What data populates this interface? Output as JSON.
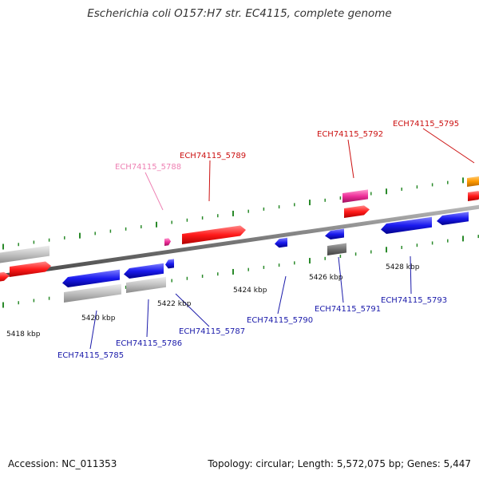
{
  "title": "Escherichia coli O157:H7 str. EC4115, complete genome",
  "footer": {
    "accession": "Accession: NC_011353",
    "summary": "Topology: circular; Length: 5,572,075 bp; Genes: 5,447"
  },
  "colors": {
    "forward_cds": "#ff1a1a",
    "reverse_cds": "#1a1aee",
    "other_gene": "#c0c0c0",
    "dark_feature": "#777777",
    "pink_feature": "#ee2f9a",
    "orange_feature": "#ff9a00",
    "pseudo_label": "#ee82b4",
    "tick_green": "#2a8a2a",
    "backbone": "#888888"
  },
  "axis_labels": [
    "5418 kbp",
    "5420 kbp",
    "5422 kbp",
    "5424 kbp",
    "5426 kbp",
    "5428 kbp"
  ],
  "gene_labels": [
    {
      "text": "ECH74115_5785",
      "color": "#1a1aaa"
    },
    {
      "text": "ECH74115_5786",
      "color": "#1a1aaa"
    },
    {
      "text": "ECH74115_5787",
      "color": "#1a1aaa"
    },
    {
      "text": "ECH74115_5788",
      "color": "#ee82b4"
    },
    {
      "text": "ECH74115_5789",
      "color": "#cc1111"
    },
    {
      "text": "ECH74115_5790",
      "color": "#1a1aaa"
    },
    {
      "text": "ECH74115_5791",
      "color": "#1a1aaa"
    },
    {
      "text": "ECH74115_5792",
      "color": "#cc1111"
    },
    {
      "text": "ECH74115_5793",
      "color": "#1a1aaa"
    },
    {
      "text": "ECH74115_5795",
      "color": "#cc1111"
    }
  ]
}
